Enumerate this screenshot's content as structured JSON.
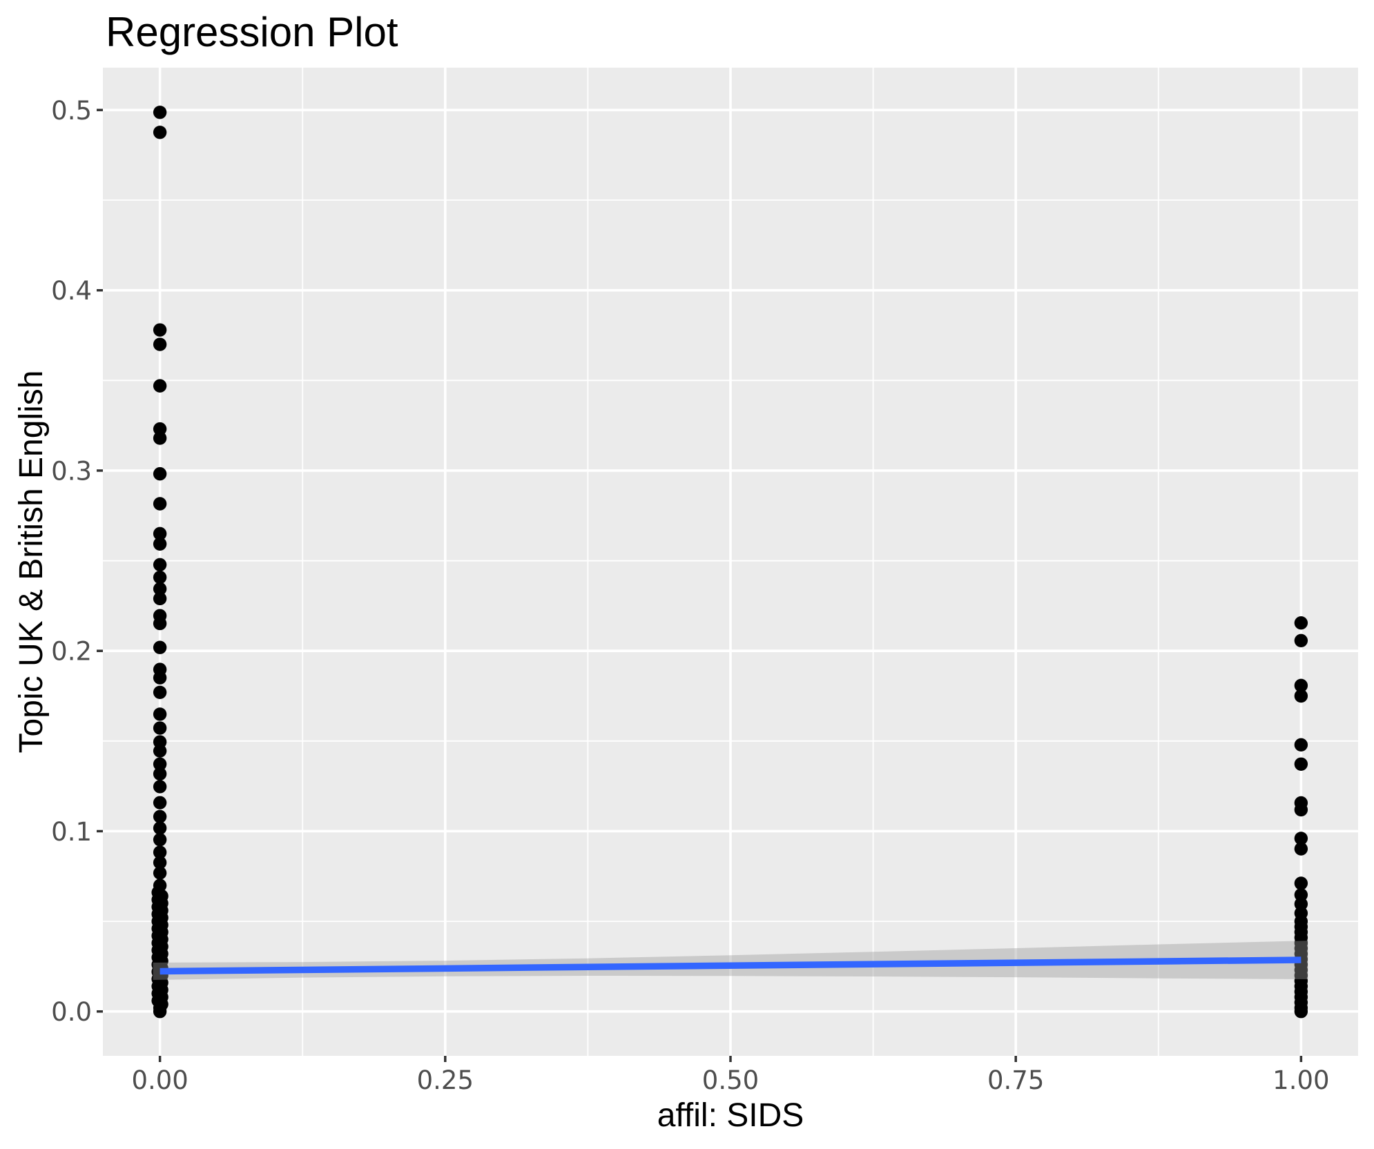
{
  "chart_data": {
    "type": "scatter",
    "title": "Regression Plot",
    "xlabel": "affil: SIDS",
    "ylabel": "Topic UK & British English",
    "x_ticks": {
      "values": [
        0,
        0.25,
        0.5,
        0.75,
        1
      ],
      "labels": [
        "0.00",
        "0.25",
        "0.50",
        "0.75",
        "1.00"
      ]
    },
    "y_ticks": {
      "values": [
        0,
        0.1,
        0.2,
        0.3,
        0.4,
        0.5
      ],
      "labels": [
        "0.0",
        "0.1",
        "0.2",
        "0.3",
        "0.4",
        "0.5"
      ]
    },
    "x_minor": [
      0.125,
      0.375,
      0.625,
      0.875
    ],
    "y_minor": [
      0.05,
      0.15,
      0.25,
      0.35,
      0.45
    ],
    "xlim": [
      -0.05,
      1.05
    ],
    "ylim": [
      -0.0246,
      0.5235
    ],
    "grid": "major and minor white gridlines on grey panel",
    "legend": "none",
    "series": [
      {
        "name": "affil=0",
        "x": 0,
        "y": [
          0.4987,
          0.4876,
          0.378,
          0.37,
          0.347,
          0.3231,
          0.318,
          0.2982,
          0.2816,
          0.265,
          0.2593,
          0.2478,
          0.2408,
          0.2344,
          0.229,
          0.2195,
          0.2152,
          0.2019,
          0.1897,
          0.1851,
          0.177,
          0.1649,
          0.1572,
          0.1495,
          0.1445,
          0.1372,
          0.1318,
          0.1247,
          0.1158,
          0.1081,
          0.1017,
          0.0953,
          0.0883,
          0.0826,
          0.0768,
          0.0699,
          0.066,
          0.064,
          0.062,
          0.06,
          0.058,
          0.056,
          0.054,
          0.052,
          0.05,
          0.048,
          0.046,
          0.044,
          0.042,
          0.04,
          0.038,
          0.036,
          0.034,
          0.032,
          0.03,
          0.028,
          0.026,
          0.024,
          0.022,
          0.02,
          0.018,
          0.016,
          0.014,
          0.012,
          0.01,
          0.008,
          0.006,
          0.004,
          0.002,
          0.0
        ]
      },
      {
        "name": "affil=1",
        "x": 1,
        "y": [
          0.2155,
          0.2057,
          0.1808,
          0.175,
          0.1479,
          0.1372,
          0.1157,
          0.1119,
          0.096,
          0.0902,
          0.0711,
          0.0647,
          0.0596,
          0.0545,
          0.05,
          0.047,
          0.044,
          0.041,
          0.038,
          0.035,
          0.032,
          0.029,
          0.026,
          0.023,
          0.02,
          0.017,
          0.014,
          0.011,
          0.008,
          0.005,
          0.002,
          0.0
        ]
      }
    ],
    "regression_line": {
      "x": [
        0,
        1
      ],
      "y": [
        0.0223,
        0.0286
      ]
    },
    "ci_band": {
      "x": [
        0,
        0.125,
        0.25,
        0.375,
        0.5,
        0.625,
        0.75,
        0.875,
        1
      ],
      "lo": [
        0.0175,
        0.0188,
        0.0195,
        0.0198,
        0.0197,
        0.0194,
        0.019,
        0.0184,
        0.0179
      ],
      "hi": [
        0.0271,
        0.0274,
        0.0282,
        0.0295,
        0.0312,
        0.0331,
        0.0351,
        0.0372,
        0.0393
      ]
    },
    "style": {
      "background": "#FFFFFF",
      "panel_bg": "#EBEBEB",
      "grid_color": "#FFFFFF",
      "point_color": "#000000",
      "line_color": "#3366FF",
      "band_color": "rgba(153,153,153,0.4)",
      "tick_label_color": "#4D4D4D",
      "tick_mark_color": "#333333",
      "title_color": "#000000"
    }
  }
}
